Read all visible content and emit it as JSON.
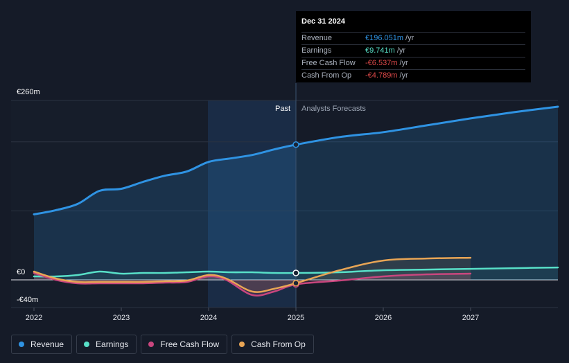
{
  "chart_data": {
    "type": "line",
    "x_ticks": [
      "2022",
      "2023",
      "2024",
      "2025",
      "2026",
      "2027"
    ],
    "y_labels": {
      "top": "€260m",
      "zero": "€0",
      "bottom": "-€40m"
    },
    "ylim": [
      -40,
      260
    ],
    "divider_x": 2025.0,
    "past_label": "Past",
    "forecast_label": "Analysts Forecasts",
    "series": [
      {
        "name": "Revenue",
        "color": "#2f93e3",
        "points": [
          [
            2022.0,
            95
          ],
          [
            2022.25,
            101
          ],
          [
            2022.5,
            110
          ],
          [
            2022.75,
            129
          ],
          [
            2023.0,
            132
          ],
          [
            2023.25,
            142
          ],
          [
            2023.5,
            151
          ],
          [
            2023.75,
            157
          ],
          [
            2024.0,
            171
          ],
          [
            2024.25,
            176
          ],
          [
            2024.5,
            181
          ],
          [
            2024.75,
            189
          ],
          [
            2025.0,
            196
          ],
          [
            2025.5,
            207
          ],
          [
            2026.0,
            214
          ],
          [
            2026.5,
            224
          ],
          [
            2027.0,
            234
          ],
          [
            2027.5,
            243
          ],
          [
            2028.0,
            251
          ]
        ]
      },
      {
        "name": "Earnings",
        "color": "#58e0c8",
        "points": [
          [
            2022.0,
            5
          ],
          [
            2022.25,
            5
          ],
          [
            2022.5,
            7
          ],
          [
            2022.75,
            12
          ],
          [
            2023.0,
            9
          ],
          [
            2023.25,
            10
          ],
          [
            2023.5,
            10
          ],
          [
            2023.75,
            11
          ],
          [
            2024.0,
            12
          ],
          [
            2024.25,
            11
          ],
          [
            2024.5,
            11
          ],
          [
            2024.75,
            10
          ],
          [
            2025.0,
            10
          ],
          [
            2025.5,
            11
          ],
          [
            2026.0,
            14
          ],
          [
            2026.5,
            15
          ],
          [
            2027.0,
            16
          ],
          [
            2027.5,
            17
          ],
          [
            2028.0,
            18
          ]
        ]
      },
      {
        "name": "Free Cash Flow",
        "color": "#c9467e",
        "points": [
          [
            2022.0,
            10
          ],
          [
            2022.25,
            0
          ],
          [
            2022.5,
            -5
          ],
          [
            2022.75,
            -5
          ],
          [
            2023.0,
            -5
          ],
          [
            2023.25,
            -5
          ],
          [
            2023.5,
            -4
          ],
          [
            2023.75,
            -3
          ],
          [
            2024.0,
            5
          ],
          [
            2024.2,
            0
          ],
          [
            2024.5,
            -22
          ],
          [
            2024.75,
            -17
          ],
          [
            2025.0,
            -6.5
          ],
          [
            2025.5,
            -1
          ],
          [
            2026.0,
            5
          ],
          [
            2026.5,
            8
          ],
          [
            2027.0,
            9
          ]
        ]
      },
      {
        "name": "Cash From Op",
        "color": "#e8a555",
        "points": [
          [
            2022.0,
            12
          ],
          [
            2022.25,
            2
          ],
          [
            2022.5,
            -3
          ],
          [
            2022.75,
            -3
          ],
          [
            2023.0,
            -3
          ],
          [
            2023.25,
            -3
          ],
          [
            2023.5,
            -2
          ],
          [
            2023.75,
            -1
          ],
          [
            2024.0,
            7
          ],
          [
            2024.2,
            2
          ],
          [
            2024.5,
            -17
          ],
          [
            2024.75,
            -13
          ],
          [
            2025.0,
            -4.8
          ],
          [
            2025.5,
            14
          ],
          [
            2026.0,
            28
          ],
          [
            2026.5,
            31
          ],
          [
            2027.0,
            32
          ]
        ]
      }
    ]
  },
  "tooltip": {
    "date": "Dec 31 2024",
    "unit": "/yr",
    "rows": [
      {
        "label": "Revenue",
        "value": "€196.051m",
        "color": "#2f93e3"
      },
      {
        "label": "Earnings",
        "value": "€9.741m",
        "color": "#58e0c8"
      },
      {
        "label": "Free Cash Flow",
        "value": "-€6.537m",
        "color": "#e24a4a"
      },
      {
        "label": "Cash From Op",
        "value": "-€4.789m",
        "color": "#e24a4a"
      }
    ]
  },
  "legend": [
    {
      "label": "Revenue",
      "color": "#2f93e3"
    },
    {
      "label": "Earnings",
      "color": "#58e0c8"
    },
    {
      "label": "Free Cash Flow",
      "color": "#c9467e"
    },
    {
      "label": "Cash From Op",
      "color": "#e8a555"
    }
  ]
}
